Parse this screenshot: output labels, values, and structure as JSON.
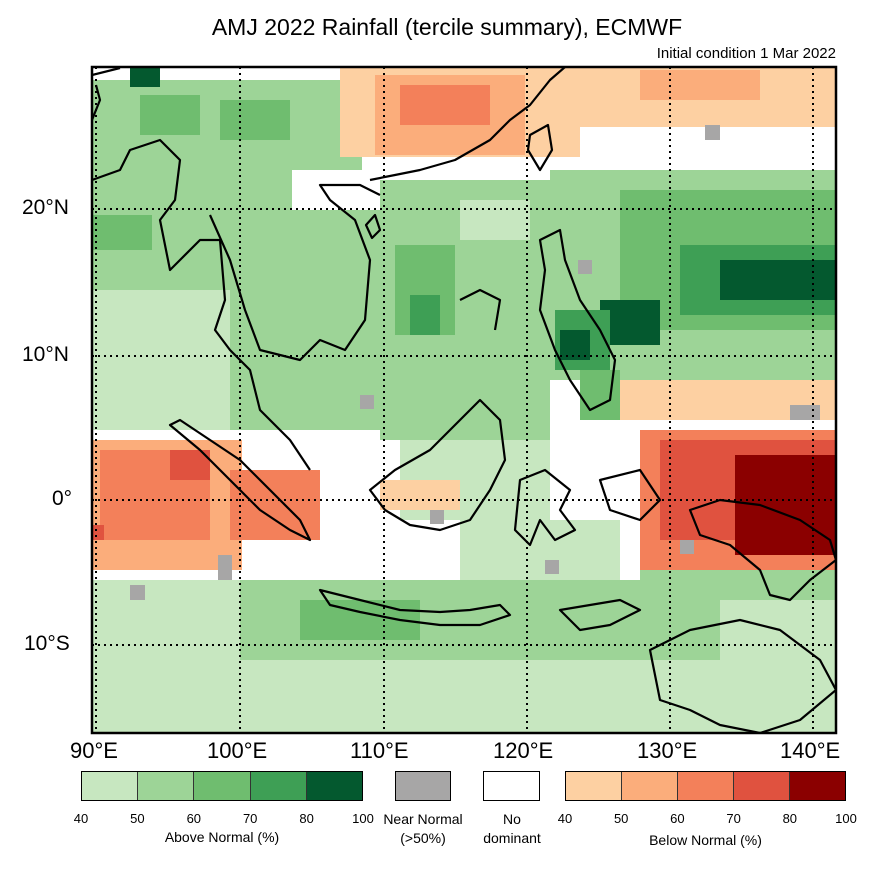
{
  "title": "AMJ 2022 Rainfall (tercile summary), ECMWF",
  "subtitle": "Initial condition 1 Mar 2022",
  "lat_labels": [
    "20°N",
    "10°N",
    "0°",
    "10°S"
  ],
  "lon_labels": [
    "90°E",
    "100°E",
    "110°E",
    "120°E",
    "130°E",
    "140°E"
  ],
  "legend": {
    "above": {
      "label": "Above Normal (%)",
      "ticks": [
        "40",
        "50",
        "60",
        "70",
        "80",
        "100"
      ],
      "colors": [
        "#c7e7c0",
        "#9dd497",
        "#6fbd6f",
        "#3e9f55",
        "#04592f"
      ]
    },
    "near": {
      "label_line1": "Near Normal",
      "label_line2": "(>50%)",
      "color": "#a7a6a6"
    },
    "none": {
      "label_line1": "No",
      "label_line2": "dominant",
      "color": "#ffffff"
    },
    "below": {
      "label": "Below Normal (%)",
      "ticks": [
        "40",
        "50",
        "60",
        "70",
        "80",
        "100"
      ],
      "colors": [
        "#fdd0a2",
        "#fbad7b",
        "#f3805a",
        "#e0523f",
        "#8b0000"
      ]
    }
  },
  "map_data": {
    "lon_range": [
      90,
      141
    ],
    "lat_range": [
      -16,
      29
    ],
    "gridlines_lon": [
      90,
      100,
      110,
      120,
      130,
      140
    ],
    "gridlines_lat": [
      20,
      10,
      0,
      -10
    ]
  }
}
